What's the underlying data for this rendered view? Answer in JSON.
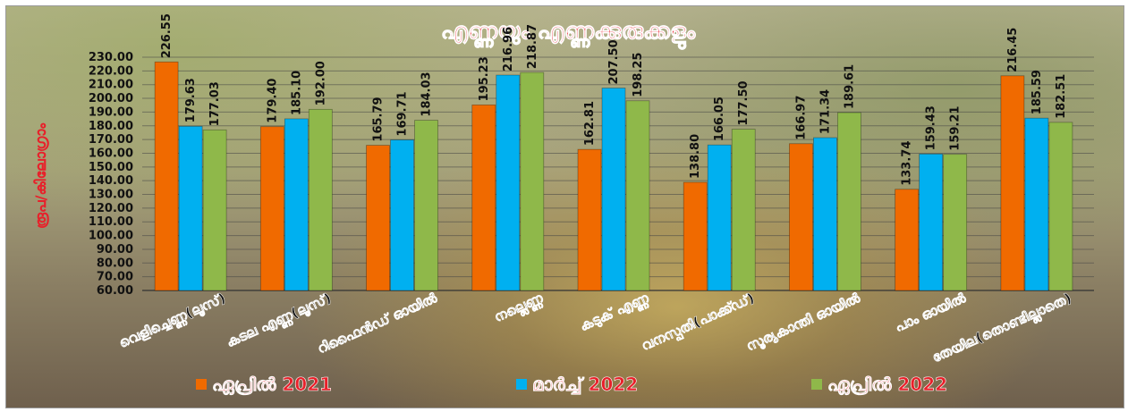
{
  "colors": {
    "april_2021": "#f06a00",
    "march_2022": "#00b0f0",
    "april_2022": "#8fb84a",
    "title": "#e8202a",
    "ylabel": "#e8202a"
  },
  "chart_data": {
    "type": "bar",
    "title": "എണ്ണയും എണ്ണക്കുരുക്കളും",
    "ylabel": "രൂപ/കിലോഗ്രാം",
    "xlabel": "",
    "ylim": [
      60,
      230
    ],
    "yticks": [
      "60.00",
      "70.00",
      "80.00",
      "90.00",
      "100.00",
      "110.00",
      "120.00",
      "130.00",
      "140.00",
      "150.00",
      "160.00",
      "170.00",
      "180.00",
      "190.00",
      "200.00",
      "210.00",
      "220.00",
      "230.00"
    ],
    "grid": true,
    "legend": "bottom",
    "categories": [
      "വെളിച്ചെണ്ണ(ലൂസ്)",
      "കടല എണ്ണ(ലൂസ്)",
      "റിഫൈൻഡ് ഓയിൽ",
      "നല്ലെണ്ണ",
      "കടുക് എണ്ണ",
      "വനസ്പതി(പാക്ക്ഡ്)",
      "സൂര്യകാന്തി ഓയിൽ",
      "പാം ഓയിൽ",
      "തേയില(തൊണ്ടില്ലാതെ)"
    ],
    "series": [
      {
        "name": "ഏപ്രിൽ 2021",
        "values": [
          226.55,
          179.4,
          165.79,
          195.23,
          162.81,
          138.8,
          166.97,
          133.74,
          216.45
        ],
        "labels": [
          "226.55",
          "179.40",
          "165.79",
          "195.23",
          "162.81",
          "138.80",
          "166.97",
          "133.74",
          "216.45"
        ]
      },
      {
        "name": "മാർച്ച് 2022",
        "values": [
          179.63,
          185.1,
          169.71,
          216.96,
          207.5,
          166.05,
          171.34,
          159.43,
          185.59
        ],
        "labels": [
          "179.63",
          "185.10",
          "169.71",
          "216.96",
          "207.50",
          "166.05",
          "171.34",
          "159.43",
          "185.59"
        ]
      },
      {
        "name": "ഏപ്രിൽ 2022",
        "values": [
          177.03,
          192.0,
          184.03,
          218.87,
          198.25,
          177.5,
          189.61,
          159.21,
          182.51
        ],
        "labels": [
          "177.03",
          "192.00",
          "184.03",
          "218.87",
          "198.25",
          "177.50",
          "189.61",
          "159.21",
          "182.51"
        ]
      }
    ]
  }
}
